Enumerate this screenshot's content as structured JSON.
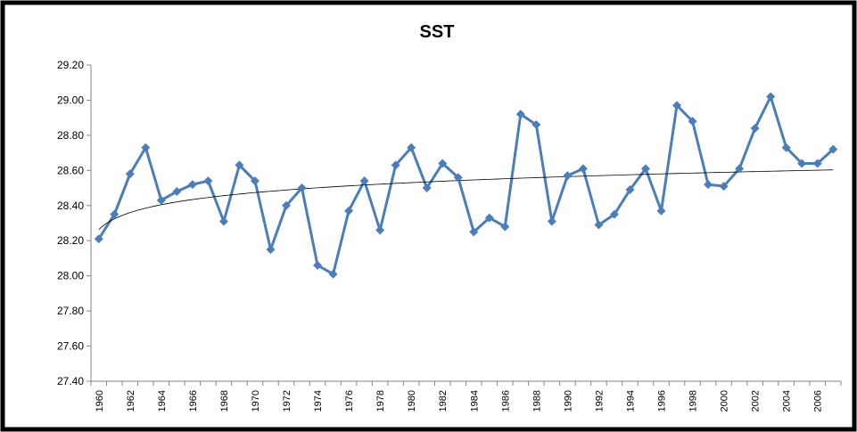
{
  "chart_data": {
    "type": "line",
    "title": "SST",
    "categories": [
      "1960",
      null,
      "1962",
      null,
      "1964",
      null,
      "1966",
      null,
      "1968",
      null,
      "1970",
      null,
      "1972",
      null,
      "1974",
      null,
      "1976",
      null,
      "1978",
      null,
      "1980",
      null,
      "1982",
      null,
      "1984",
      null,
      "1986",
      null,
      "1988",
      null,
      "1990",
      null,
      "1992",
      null,
      "1994",
      null,
      "1996",
      null,
      "1998",
      null,
      "2000",
      null,
      "2002",
      null,
      "2004",
      null,
      "2006",
      null
    ],
    "series": [
      {
        "name": "SST",
        "color": "#4a7ebb",
        "values": [
          28.21,
          28.35,
          28.58,
          28.73,
          28.43,
          28.48,
          28.52,
          28.54,
          28.31,
          28.63,
          28.54,
          28.15,
          28.4,
          28.5,
          28.06,
          28.01,
          28.37,
          28.54,
          28.26,
          28.63,
          28.73,
          28.5,
          28.64,
          28.56,
          28.25,
          28.33,
          28.28,
          28.92,
          28.86,
          28.31,
          28.57,
          28.61,
          28.29,
          28.35,
          28.49,
          28.61,
          28.37,
          28.97,
          28.88,
          28.52,
          28.51,
          28.61,
          28.84,
          29.02,
          28.73,
          28.64,
          28.64,
          28.72
        ]
      }
    ],
    "ylim": [
      27.4,
      29.2
    ],
    "yticks": [
      {
        "value": 27.4,
        "label": "27.40"
      },
      {
        "value": 27.6,
        "label": "27.60"
      },
      {
        "value": 27.8,
        "label": "27.80"
      },
      {
        "value": 28,
        "label": "28.00"
      },
      {
        "value": 28.2,
        "label": "28.20"
      },
      {
        "value": 28.4,
        "label": "28.40"
      },
      {
        "value": 28.6,
        "label": "28.60"
      },
      {
        "value": 28.8,
        "label": "28.80"
      },
      {
        "value": 29,
        "label": "29.00"
      },
      {
        "value": 29.2,
        "label": "29.20"
      }
    ],
    "grid": false,
    "trendline": "logarithmic"
  }
}
